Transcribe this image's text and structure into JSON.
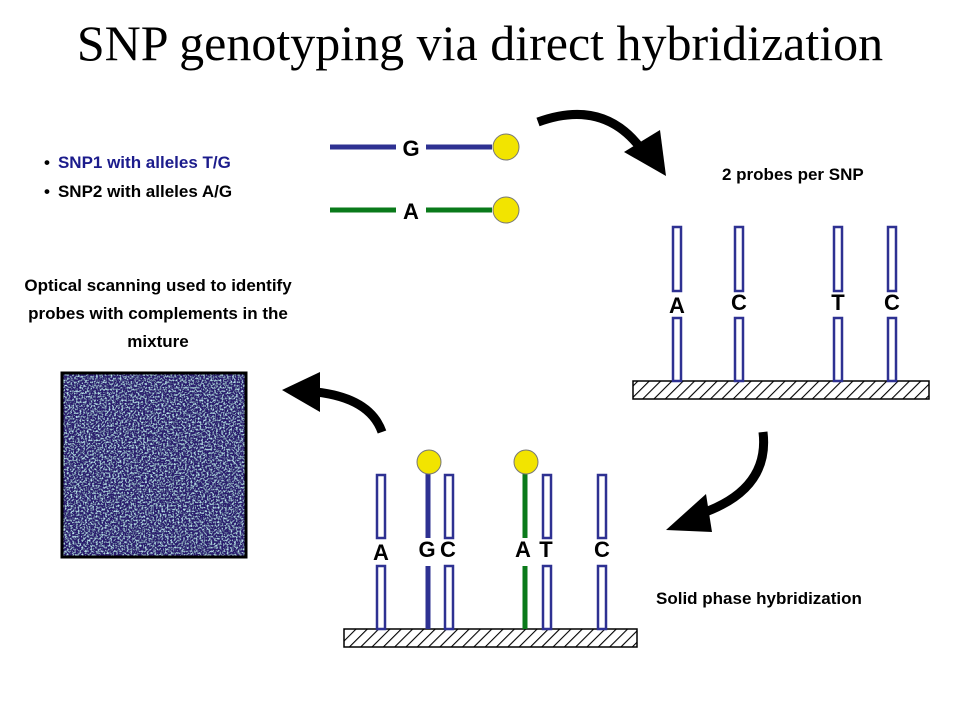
{
  "title": "SNP genotyping via direct hybridization",
  "bullets": [
    {
      "text": "SNP1 with alleles T/G",
      "color": "#1c1c8c"
    },
    {
      "text": "SNP2 with alleles A/G",
      "color": "#000000"
    }
  ],
  "targets": [
    {
      "label": "G",
      "color": "#2e3192"
    },
    {
      "label": "A",
      "color": "#0a7a1a"
    }
  ],
  "probes_caption": "2 probes per SNP",
  "array_top_labels": [
    "A",
    "C",
    "T",
    "C"
  ],
  "hybrid_caption": "Solid phase hybridization",
  "array_bottom_labels": [
    "A",
    "G",
    "C",
    "A",
    "T",
    "C"
  ],
  "scan_caption": "Optical scanning used to identify probes with complements in the mixture",
  "colors": {
    "probe": "#2e3192",
    "green": "#0a7a1a",
    "bead": "#f2e400",
    "scan_bg": "#2a1f6e"
  }
}
